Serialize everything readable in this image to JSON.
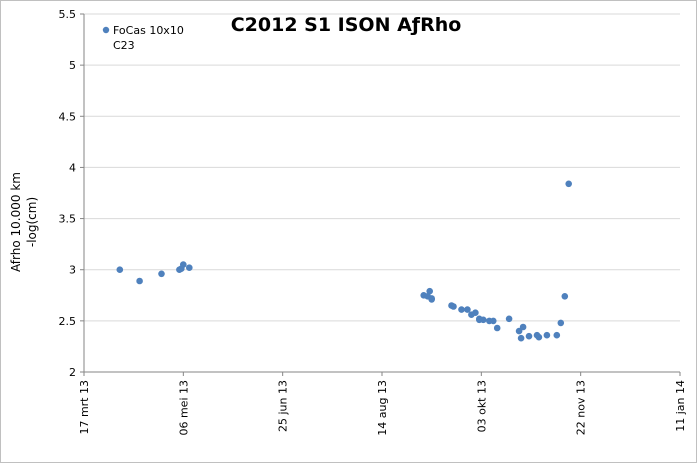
{
  "chart_data": {
    "type": "scatter",
    "title": "C2012 S1 ISON AƒRho",
    "ylabel_lines": [
      "Afrho 10.000 km",
      "-log(cm)"
    ],
    "xlabel": "",
    "ylim": [
      2,
      5.5
    ],
    "yticks": [
      "2",
      "2.5",
      "3",
      "3.5",
      "4",
      "4.5",
      "5",
      "5.5"
    ],
    "xlim": [
      "2013-03-17",
      "2014-01-11"
    ],
    "xticks": [
      "17 mrt 13",
      "06 mei 13",
      "25 jun 13",
      "14 aug 13",
      "03 okt 13",
      "22 nov 13",
      "11 jan 14"
    ],
    "grid": "horizontal",
    "legend_position": "top-left",
    "series": [
      {
        "name_lines": [
          "FoCas 10x10",
          "C23"
        ],
        "color": "#4f81bd",
        "points": [
          {
            "x": "2013-04-04",
            "y": 3.0
          },
          {
            "x": "2013-04-14",
            "y": 2.89
          },
          {
            "x": "2013-04-25",
            "y": 2.96
          },
          {
            "x": "2013-05-04",
            "y": 3.0
          },
          {
            "x": "2013-05-05",
            "y": 3.01
          },
          {
            "x": "2013-05-06",
            "y": 3.05
          },
          {
            "x": "2013-05-09",
            "y": 3.02
          },
          {
            "x": "2013-09-04",
            "y": 2.75
          },
          {
            "x": "2013-09-06",
            "y": 2.74
          },
          {
            "x": "2013-09-07",
            "y": 2.79
          },
          {
            "x": "2013-09-08",
            "y": 2.72
          },
          {
            "x": "2013-09-08",
            "y": 2.71
          },
          {
            "x": "2013-09-18",
            "y": 2.65
          },
          {
            "x": "2013-09-19",
            "y": 2.64
          },
          {
            "x": "2013-09-23",
            "y": 2.61
          },
          {
            "x": "2013-09-26",
            "y": 2.61
          },
          {
            "x": "2013-09-28",
            "y": 2.56
          },
          {
            "x": "2013-09-30",
            "y": 2.58
          },
          {
            "x": "2013-10-02",
            "y": 2.52
          },
          {
            "x": "2013-10-02",
            "y": 2.51
          },
          {
            "x": "2013-10-04",
            "y": 2.51
          },
          {
            "x": "2013-10-07",
            "y": 2.5
          },
          {
            "x": "2013-10-09",
            "y": 2.5
          },
          {
            "x": "2013-10-11",
            "y": 2.43
          },
          {
            "x": "2013-10-17",
            "y": 2.52
          },
          {
            "x": "2013-10-22",
            "y": 2.4
          },
          {
            "x": "2013-10-23",
            "y": 2.33
          },
          {
            "x": "2013-10-24",
            "y": 2.44
          },
          {
            "x": "2013-10-27",
            "y": 2.35
          },
          {
            "x": "2013-10-31",
            "y": 2.36
          },
          {
            "x": "2013-11-01",
            "y": 2.34
          },
          {
            "x": "2013-11-05",
            "y": 2.36
          },
          {
            "x": "2013-11-10",
            "y": 2.36
          },
          {
            "x": "2013-11-12",
            "y": 2.48
          },
          {
            "x": "2013-11-14",
            "y": 2.74
          },
          {
            "x": "2013-11-16",
            "y": 3.84
          }
        ]
      }
    ]
  }
}
